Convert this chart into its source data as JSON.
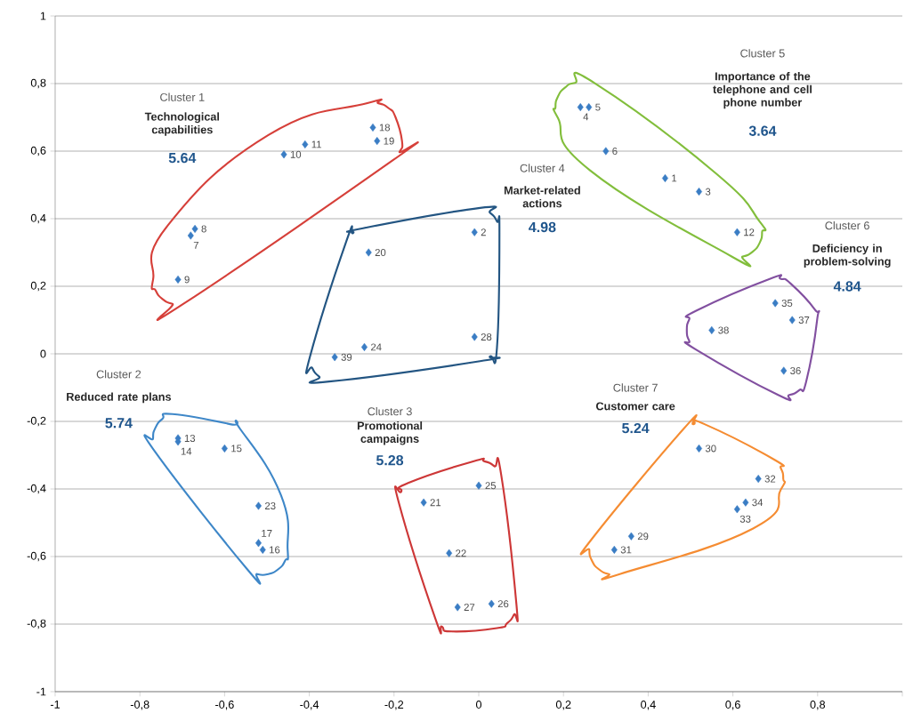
{
  "chart_data": {
    "type": "scatter",
    "marker": "diamond",
    "grid": "y",
    "xlim": [
      -1,
      1
    ],
    "ylim": [
      -1,
      1
    ],
    "xticks": [
      -1,
      {
        "value": -0.8,
        "label": "-0,8"
      },
      {
        "value": -0.6,
        "label": "-0,6"
      },
      {
        "value": -0.4,
        "label": "-0,4"
      },
      {
        "value": -0.2,
        "label": "-0,2"
      },
      0,
      {
        "value": 0.2,
        "label": "0,2"
      },
      {
        "value": 0.4,
        "label": "0,4"
      },
      {
        "value": 0.6,
        "label": "0,6"
      },
      {
        "value": 0.8,
        "label": "0,8"
      },
      {
        "value": 1,
        "label": null
      }
    ],
    "yticks": [
      -1,
      {
        "value": -0.8,
        "label": "-0,8"
      },
      {
        "value": -0.6,
        "label": "-0,6"
      },
      {
        "value": -0.4,
        "label": "-0,4"
      },
      {
        "value": -0.2,
        "label": "-0,2"
      },
      0,
      {
        "value": 0.2,
        "label": "0,2"
      },
      {
        "value": 0.4,
        "label": "0,4"
      },
      {
        "value": 0.6,
        "label": "0,6"
      },
      {
        "value": 0.8,
        "label": "0,8"
      },
      1
    ],
    "series": [
      {
        "color": "#3a7dc4",
        "x": [
          -0.46,
          -0.41,
          -0.25,
          -0.24,
          -0.67,
          -0.68,
          -0.71
        ],
        "values": [
          0.59,
          0.62,
          0.67,
          0.63,
          0.37,
          0.35,
          0.22
        ]
      },
      {
        "color": "#3a7dc4",
        "x": [
          -0.71,
          -0.71,
          -0.6,
          -0.52,
          -0.52,
          -0.51
        ],
        "values": [
          -0.25,
          -0.26,
          -0.28,
          -0.45,
          -0.56,
          -0.58
        ]
      },
      {
        "color": "#3a7dc4",
        "x": [
          0.0,
          -0.13,
          -0.07,
          -0.05,
          0.03
        ],
        "values": [
          -0.39,
          -0.44,
          -0.59,
          -0.75,
          -0.74
        ]
      },
      {
        "color": "#3a7dc4",
        "x": [
          -0.26,
          -0.01,
          -0.01,
          -0.27,
          -0.34
        ],
        "values": [
          0.3,
          0.36,
          0.05,
          0.02,
          -0.01
        ]
      },
      {
        "color": "#3a7dc4",
        "x": [
          0.24,
          0.26,
          0.3,
          0.44,
          0.52,
          0.61
        ],
        "values": [
          0.73,
          0.73,
          0.6,
          0.52,
          0.48,
          0.36
        ]
      },
      {
        "color": "#3a7dc4",
        "x": [
          0.7,
          0.74,
          0.55,
          0.72
        ],
        "values": [
          0.15,
          0.1,
          0.07,
          -0.05
        ]
      },
      {
        "color": "#3a7dc4",
        "x": [
          0.52,
          0.66,
          0.63,
          0.61,
          0.36,
          0.32
        ],
        "values": [
          -0.28,
          -0.37,
          -0.44,
          -0.46,
          -0.54,
          -0.58
        ]
      }
    ],
    "annotations": [
      "Cluster 1",
      "Technological capabilities",
      "5.64",
      "Cluster 2",
      "Reduced rate plans",
      "5.74",
      "Cluster 3",
      "Promotional campaigns",
      "5.28",
      "Cluster 4",
      "Market-related actions",
      "4.98",
      "Cluster 5",
      "Importance of the telephone and cell phone number",
      "3.64",
      "Cluster 6",
      "Deficiency in problem-solving",
      "4.84",
      "Cluster 7",
      "Customer care",
      "5.24",
      {
        "text": "10",
        "x": -0.46,
        "y": 0.59
      },
      {
        "text": "11",
        "x": -0.41,
        "y": 0.62
      },
      {
        "text": "18",
        "x": -0.25,
        "y": 0.67
      },
      {
        "text": "19",
        "x": -0.24,
        "y": 0.63
      },
      {
        "text": "8",
        "x": -0.67,
        "y": 0.37
      },
      {
        "text": "7",
        "x": -0.68,
        "y": 0.35
      },
      {
        "text": "9",
        "x": -0.71,
        "y": 0.22
      },
      {
        "text": "13",
        "x": -0.71,
        "y": -0.25
      },
      {
        "text": "14",
        "x": -0.71,
        "y": -0.26
      },
      {
        "text": "15",
        "x": -0.6,
        "y": -0.28
      },
      {
        "text": "23",
        "x": -0.52,
        "y": -0.45
      },
      {
        "text": "17",
        "x": -0.52,
        "y": -0.56
      },
      {
        "text": "16",
        "x": -0.51,
        "y": -0.58
      },
      {
        "text": "25",
        "x": 0.0,
        "y": -0.39
      },
      {
        "text": "21",
        "x": -0.13,
        "y": -0.44
      },
      {
        "text": "22",
        "x": -0.07,
        "y": -0.59
      },
      {
        "text": "27",
        "x": -0.05,
        "y": -0.75
      },
      {
        "text": "26",
        "x": 0.03,
        "y": -0.74
      },
      {
        "text": "20",
        "x": -0.26,
        "y": 0.3
      },
      {
        "text": "2",
        "x": -0.01,
        "y": 0.36
      },
      {
        "text": "28",
        "x": -0.01,
        "y": 0.05
      },
      {
        "text": "24",
        "x": -0.27,
        "y": 0.02
      },
      {
        "text": "39",
        "x": -0.34,
        "y": -0.01
      },
      {
        "text": "4",
        "x": 0.24,
        "y": 0.73
      },
      {
        "text": "5",
        "x": 0.26,
        "y": 0.73
      },
      {
        "text": "6",
        "x": 0.3,
        "y": 0.6
      },
      {
        "text": "1",
        "x": 0.44,
        "y": 0.52
      },
      {
        "text": "3",
        "x": 0.52,
        "y": 0.48
      },
      {
        "text": "12",
        "x": 0.61,
        "y": 0.36
      },
      {
        "text": "35",
        "x": 0.7,
        "y": 0.15
      },
      {
        "text": "37",
        "x": 0.74,
        "y": 0.1
      },
      {
        "text": "38",
        "x": 0.55,
        "y": 0.07
      },
      {
        "text": "36",
        "x": 0.72,
        "y": -0.05
      },
      {
        "text": "30",
        "x": 0.52,
        "y": -0.28
      },
      {
        "text": "32",
        "x": 0.66,
        "y": -0.37
      },
      {
        "text": "34",
        "x": 0.63,
        "y": -0.44
      },
      {
        "text": "33",
        "x": 0.61,
        "y": -0.46
      },
      {
        "text": "29",
        "x": 0.36,
        "y": -0.54
      },
      {
        "text": "31",
        "x": 0.32,
        "y": -0.58
      }
    ]
  }
}
